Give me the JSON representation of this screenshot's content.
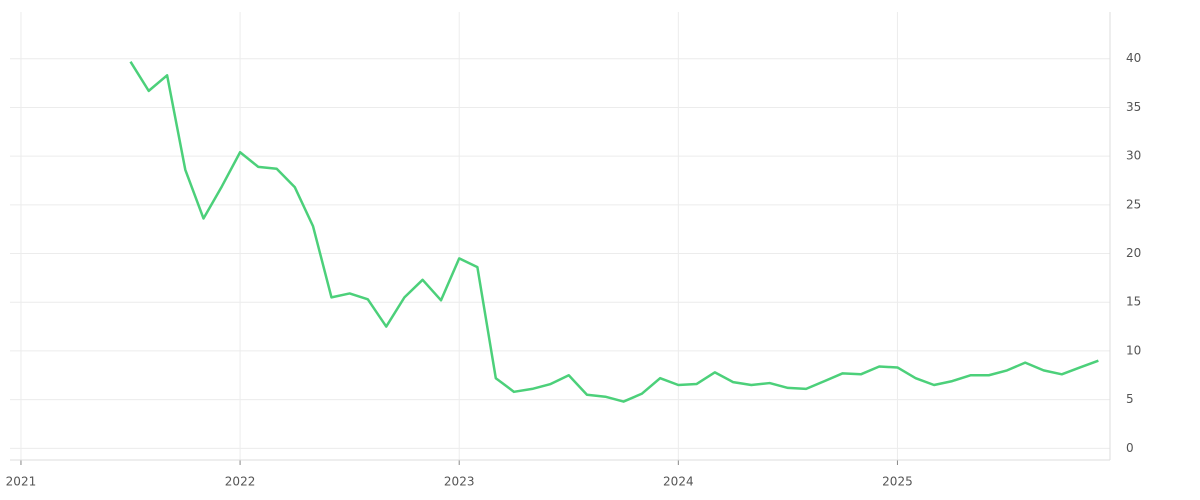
{
  "chart_data": {
    "type": "line",
    "x": [
      2021.5,
      2021.583,
      2021.667,
      2021.75,
      2021.833,
      2021.917,
      2022,
      2022.083,
      2022.167,
      2022.25,
      2022.333,
      2022.417,
      2022.5,
      2022.583,
      2022.667,
      2022.75,
      2022.833,
      2022.917,
      2023,
      2023.083,
      2023.167,
      2023.25,
      2023.333,
      2023.417,
      2023.5,
      2023.583,
      2023.667,
      2023.75,
      2023.833,
      2023.917,
      2024,
      2024.083,
      2024.167,
      2024.25,
      2024.333,
      2024.417,
      2024.5,
      2024.583,
      2024.667,
      2024.75,
      2024.833,
      2024.917,
      2025,
      2025.083,
      2025.167,
      2025.25,
      2025.333,
      2025.417,
      2025.5,
      2025.583,
      2025.667,
      2025.75,
      2025.833,
      2025.917
    ],
    "series": [
      {
        "color": "#4cd07a",
        "values": [
          39.7,
          36.7,
          38.3,
          28.6,
          23.6,
          26.9,
          30.4,
          28.9,
          28.7,
          26.8,
          22.8,
          15.5,
          15.9,
          15.3,
          12.5,
          15.5,
          17.3,
          15.2,
          19.5,
          18.6,
          7.2,
          5.8,
          6.1,
          6.6,
          7.5,
          5.5,
          5.3,
          4.8,
          5.6,
          7.2,
          6.5,
          6.6,
          7.8,
          6.8,
          6.5,
          6.7,
          6.2,
          6.1,
          6.9,
          7.7,
          7.6,
          8.4,
          8.3,
          7.2,
          6.5,
          6.9,
          7.5,
          7.5,
          8.0,
          8.8,
          8.0,
          7.6,
          8.3,
          9.0
        ]
      }
    ],
    "xlim": [
      2020.95,
      2025.97
    ],
    "xticks": [
      2021,
      2022,
      2023,
      2024,
      2025
    ],
    "ylim": [
      -1.2,
      44.8
    ],
    "yticks": [
      0,
      5,
      10,
      15,
      20,
      25,
      30,
      35,
      40
    ],
    "grid": true
  }
}
